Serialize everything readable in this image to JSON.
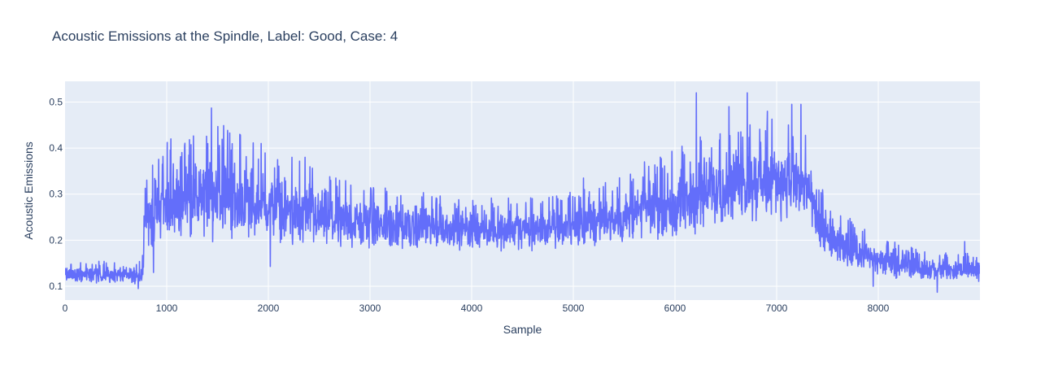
{
  "chart_data": {
    "type": "line",
    "title": "Acoustic Emissions at the Spindle, Label: Good, Case: 4",
    "xlabel": "Sample",
    "ylabel": "Acoustic Emissions",
    "xlim": [
      0,
      9000
    ],
    "ylim": [
      0.07,
      0.545
    ],
    "x_ticks": [
      0,
      1000,
      2000,
      3000,
      4000,
      5000,
      6000,
      7000,
      8000
    ],
    "x_tick_labels": [
      "0",
      "1000",
      "2000",
      "3000",
      "4000",
      "5000",
      "6000",
      "7000",
      "8000"
    ],
    "y_ticks": [
      0.1,
      0.2,
      0.3,
      0.4,
      0.5
    ],
    "y_tick_labels": [
      "0.1",
      "0.2",
      "0.3",
      "0.4",
      "0.5"
    ],
    "grid": true,
    "series": [
      {
        "name": "Acoustic Emissions",
        "color": "#636efa",
        "n_samples": 9000,
        "envelope_x": [
          0,
          700,
          760,
          780,
          1000,
          1500,
          2000,
          2500,
          3000,
          3500,
          4000,
          4500,
          5000,
          5500,
          6000,
          6500,
          7000,
          7300,
          7400,
          7600,
          8000,
          8500,
          9000
        ],
        "envelope_low": [
          0.105,
          0.105,
          0.105,
          0.17,
          0.19,
          0.195,
          0.19,
          0.18,
          0.175,
          0.175,
          0.175,
          0.175,
          0.18,
          0.19,
          0.2,
          0.23,
          0.24,
          0.23,
          0.17,
          0.14,
          0.12,
          0.11,
          0.11
        ],
        "envelope_high": [
          0.145,
          0.145,
          0.145,
          0.3,
          0.37,
          0.4,
          0.36,
          0.32,
          0.29,
          0.28,
          0.27,
          0.27,
          0.28,
          0.31,
          0.36,
          0.41,
          0.42,
          0.4,
          0.3,
          0.24,
          0.19,
          0.16,
          0.16
        ],
        "peaks": [
          [
            860,
            0.363
          ],
          [
            1040,
            0.42
          ],
          [
            1440,
            0.487
          ],
          [
            1560,
            0.449
          ],
          [
            1720,
            0.43
          ],
          [
            1930,
            0.41
          ],
          [
            2360,
            0.38
          ],
          [
            2700,
            0.33
          ],
          [
            3690,
            0.296
          ],
          [
            5100,
            0.335
          ],
          [
            5700,
            0.37
          ],
          [
            6210,
            0.52
          ],
          [
            6530,
            0.49
          ],
          [
            6710,
            0.52
          ],
          [
            6910,
            0.48
          ],
          [
            7150,
            0.495
          ],
          [
            7240,
            0.495
          ],
          [
            8850,
            0.197
          ]
        ],
        "troughs": [
          [
            720,
            0.095
          ],
          [
            870,
            0.13
          ],
          [
            2020,
            0.143
          ],
          [
            7950,
            0.1
          ],
          [
            8580,
            0.087
          ]
        ]
      }
    ]
  }
}
